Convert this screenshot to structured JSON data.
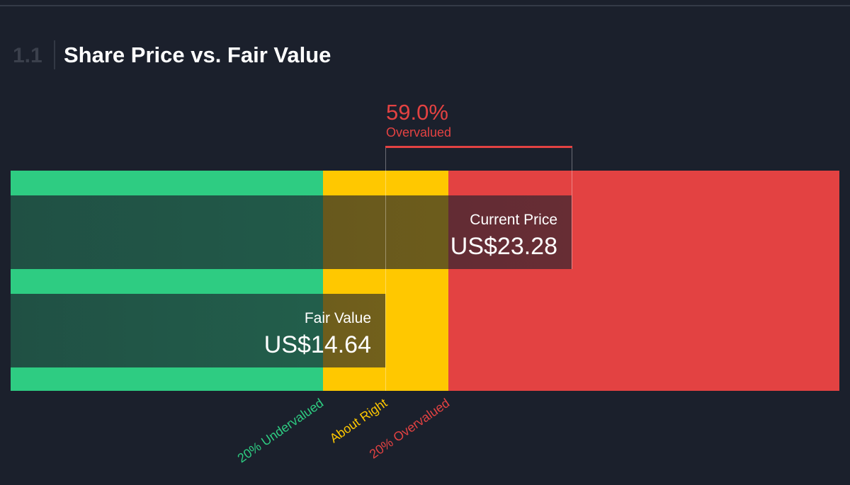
{
  "section": {
    "number": "1.1",
    "title": "Share Price vs. Fair Value"
  },
  "difference": {
    "percent": "59.0%",
    "label": "Overvalued"
  },
  "current_price": {
    "label": "Current Price",
    "value": "US$23.28"
  },
  "fair_value": {
    "label": "Fair Value",
    "value": "US$14.64"
  },
  "zones": [
    "20% Undervalued",
    "About Right",
    "20% Overvalued"
  ]
}
